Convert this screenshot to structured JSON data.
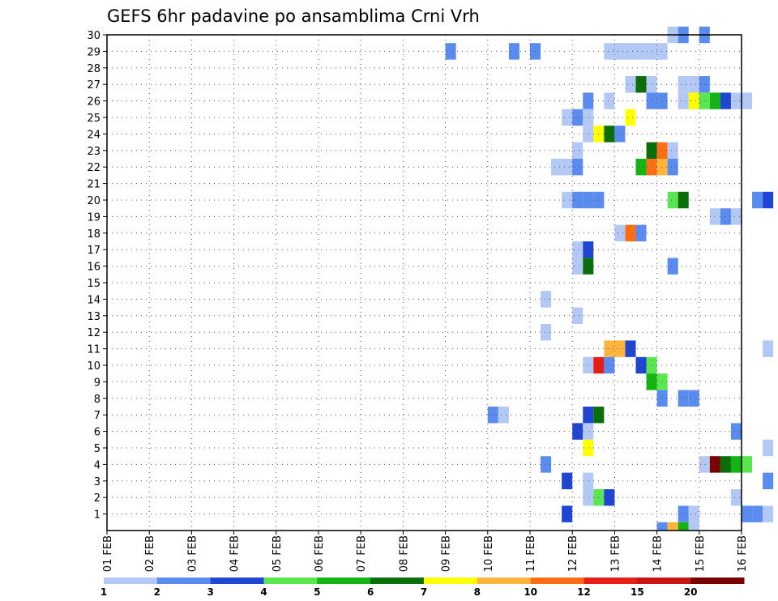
{
  "chart_data": {
    "type": "heatmap",
    "title": "GEFS 6hr padavine po ansamblima Crni Vrh",
    "x_tick_labels": [
      "01 FEB",
      "02 FEB",
      "03 FEB",
      "04 FEB",
      "05 FEB",
      "06 FEB",
      "07 FEB",
      "08 FEB",
      "09 FEB",
      "10 FEB",
      "11 FEB",
      "12 FEB",
      "13 FEB",
      "14 FEB",
      "15 FEB",
      "16 FEB"
    ],
    "y_tick_labels": [
      "1",
      "2",
      "3",
      "4",
      "5",
      "6",
      "7",
      "8",
      "9",
      "10",
      "11",
      "12",
      "13",
      "14",
      "15",
      "16",
      "17",
      "18",
      "19",
      "20",
      "21",
      "22",
      "23",
      "24",
      "25",
      "26",
      "27",
      "28",
      "29",
      "30"
    ],
    "x_range_days": [
      1,
      16
    ],
    "y_range_members": [
      0,
      30
    ],
    "steps_per_day": 4,
    "grid": true,
    "legend_position": "bottom",
    "legend": {
      "colors": [
        "#b4c8f5",
        "#5a8cf0",
        "#1e46d2",
        "#5ae650",
        "#14b414",
        "#0a6e0a",
        "#ffff00",
        "#ffb43c",
        "#ff6e14",
        "#e61e14",
        "#c81414",
        "#780000"
      ],
      "labels": [
        "1",
        "2",
        "3",
        "4",
        "5",
        "6",
        "7",
        "8",
        "10",
        "12",
        "15",
        "20"
      ]
    },
    "cells": [
      {
        "member": 30,
        "day": 14.5,
        "cat": 1
      },
      {
        "member": 30,
        "day": 14.75,
        "cat": 2
      },
      {
        "member": 30,
        "day": 15.25,
        "cat": 2
      },
      {
        "member": 29,
        "day": 9.25,
        "cat": 2
      },
      {
        "member": 29,
        "day": 10.75,
        "cat": 2
      },
      {
        "member": 29,
        "day": 11.25,
        "cat": 2
      },
      {
        "member": 29,
        "day": 13.0,
        "cat": 1
      },
      {
        "member": 29,
        "day": 13.25,
        "cat": 1
      },
      {
        "member": 29,
        "day": 13.5,
        "cat": 1
      },
      {
        "member": 29,
        "day": 13.75,
        "cat": 1
      },
      {
        "member": 29,
        "day": 14.0,
        "cat": 1
      },
      {
        "member": 29,
        "day": 14.25,
        "cat": 1
      },
      {
        "member": 27,
        "day": 13.5,
        "cat": 1
      },
      {
        "member": 27,
        "day": 13.75,
        "cat": 6
      },
      {
        "member": 27,
        "day": 14.0,
        "cat": 1
      },
      {
        "member": 27,
        "day": 14.75,
        "cat": 1
      },
      {
        "member": 27,
        "day": 15.0,
        "cat": 1
      },
      {
        "member": 27,
        "day": 15.25,
        "cat": 2
      },
      {
        "member": 26,
        "day": 12.5,
        "cat": 2
      },
      {
        "member": 26,
        "day": 13.0,
        "cat": 1
      },
      {
        "member": 26,
        "day": 14.0,
        "cat": 2
      },
      {
        "member": 26,
        "day": 14.25,
        "cat": 2
      },
      {
        "member": 26,
        "day": 14.75,
        "cat": 1
      },
      {
        "member": 26,
        "day": 15.0,
        "cat": 7
      },
      {
        "member": 26,
        "day": 15.25,
        "cat": 4
      },
      {
        "member": 26,
        "day": 15.5,
        "cat": 5
      },
      {
        "member": 26,
        "day": 15.75,
        "cat": 3
      },
      {
        "member": 26,
        "day": 16.0,
        "cat": 1
      },
      {
        "member": 26,
        "day": 16.25,
        "cat": 1
      },
      {
        "member": 25,
        "day": 12.0,
        "cat": 1
      },
      {
        "member": 25,
        "day": 12.25,
        "cat": 2
      },
      {
        "member": 25,
        "day": 12.5,
        "cat": 1
      },
      {
        "member": 25,
        "day": 13.5,
        "cat": 7
      },
      {
        "member": 24,
        "day": 12.5,
        "cat": 1
      },
      {
        "member": 24,
        "day": 12.75,
        "cat": 7
      },
      {
        "member": 24,
        "day": 13.0,
        "cat": 6
      },
      {
        "member": 24,
        "day": 13.25,
        "cat": 2
      },
      {
        "member": 23,
        "day": 12.25,
        "cat": 1
      },
      {
        "member": 23,
        "day": 14.0,
        "cat": 6
      },
      {
        "member": 23,
        "day": 14.25,
        "cat": 9
      },
      {
        "member": 23,
        "day": 14.5,
        "cat": 1
      },
      {
        "member": 22,
        "day": 11.75,
        "cat": 1
      },
      {
        "member": 22,
        "day": 12.0,
        "cat": 1
      },
      {
        "member": 22,
        "day": 12.25,
        "cat": 2
      },
      {
        "member": 22,
        "day": 13.75,
        "cat": 5
      },
      {
        "member": 22,
        "day": 14.0,
        "cat": 9
      },
      {
        "member": 22,
        "day": 14.25,
        "cat": 8
      },
      {
        "member": 22,
        "day": 14.5,
        "cat": 2
      },
      {
        "member": 20,
        "day": 12.0,
        "cat": 1
      },
      {
        "member": 20,
        "day": 12.25,
        "cat": 2
      },
      {
        "member": 20,
        "day": 12.5,
        "cat": 2
      },
      {
        "member": 20,
        "day": 12.75,
        "cat": 2
      },
      {
        "member": 20,
        "day": 14.5,
        "cat": 4
      },
      {
        "member": 20,
        "day": 14.75,
        "cat": 6
      },
      {
        "member": 20,
        "day": 16.5,
        "cat": 2
      },
      {
        "member": 20,
        "day": 16.75,
        "cat": 3
      },
      {
        "member": 19,
        "day": 15.5,
        "cat": 1
      },
      {
        "member": 19,
        "day": 15.75,
        "cat": 2
      },
      {
        "member": 19,
        "day": 16.0,
        "cat": 1
      },
      {
        "member": 18,
        "day": 13.25,
        "cat": 1
      },
      {
        "member": 18,
        "day": 13.5,
        "cat": 9
      },
      {
        "member": 18,
        "day": 13.75,
        "cat": 2
      },
      {
        "member": 17,
        "day": 12.25,
        "cat": 1
      },
      {
        "member": 17,
        "day": 12.5,
        "cat": 3
      },
      {
        "member": 16,
        "day": 12.25,
        "cat": 1
      },
      {
        "member": 16,
        "day": 12.5,
        "cat": 6
      },
      {
        "member": 16,
        "day": 14.5,
        "cat": 2
      },
      {
        "member": 14,
        "day": 11.5,
        "cat": 1
      },
      {
        "member": 13,
        "day": 12.25,
        "cat": 1
      },
      {
        "member": 12,
        "day": 11.5,
        "cat": 1
      },
      {
        "member": 11,
        "day": 13.0,
        "cat": 8
      },
      {
        "member": 11,
        "day": 13.25,
        "cat": 8
      },
      {
        "member": 11,
        "day": 13.5,
        "cat": 3
      },
      {
        "member": 11,
        "day": 16.75,
        "cat": 1
      },
      {
        "member": 10,
        "day": 12.5,
        "cat": 1
      },
      {
        "member": 10,
        "day": 12.75,
        "cat": 10
      },
      {
        "member": 10,
        "day": 13.0,
        "cat": 2
      },
      {
        "member": 10,
        "day": 13.75,
        "cat": 3
      },
      {
        "member": 10,
        "day": 14.0,
        "cat": 4
      },
      {
        "member": 9,
        "day": 14.0,
        "cat": 5
      },
      {
        "member": 9,
        "day": 14.25,
        "cat": 4
      },
      {
        "member": 8,
        "day": 14.25,
        "cat": 2
      },
      {
        "member": 8,
        "day": 14.75,
        "cat": 2
      },
      {
        "member": 8,
        "day": 15.0,
        "cat": 2
      },
      {
        "member": 7,
        "day": 10.25,
        "cat": 2
      },
      {
        "member": 7,
        "day": 10.5,
        "cat": 1
      },
      {
        "member": 7,
        "day": 12.5,
        "cat": 3
      },
      {
        "member": 7,
        "day": 12.75,
        "cat": 6
      },
      {
        "member": 6,
        "day": 12.25,
        "cat": 3
      },
      {
        "member": 6,
        "day": 12.5,
        "cat": 1
      },
      {
        "member": 6,
        "day": 16.0,
        "cat": 2
      },
      {
        "member": 5,
        "day": 12.5,
        "cat": 7
      },
      {
        "member": 5,
        "day": 16.75,
        "cat": 1
      },
      {
        "member": 4,
        "day": 11.5,
        "cat": 2
      },
      {
        "member": 4,
        "day": 15.25,
        "cat": 1
      },
      {
        "member": 4,
        "day": 15.5,
        "cat": 12
      },
      {
        "member": 4,
        "day": 15.75,
        "cat": 6
      },
      {
        "member": 4,
        "day": 16.0,
        "cat": 5
      },
      {
        "member": 4,
        "day": 16.25,
        "cat": 4
      },
      {
        "member": 3,
        "day": 12.0,
        "cat": 3
      },
      {
        "member": 3,
        "day": 12.5,
        "cat": 1
      },
      {
        "member": 3,
        "day": 16.75,
        "cat": 2
      },
      {
        "member": 2,
        "day": 12.5,
        "cat": 1
      },
      {
        "member": 2,
        "day": 12.75,
        "cat": 4
      },
      {
        "member": 2,
        "day": 13.0,
        "cat": 3
      },
      {
        "member": 2,
        "day": 16.0,
        "cat": 1
      },
      {
        "member": 1,
        "day": 12.0,
        "cat": 3
      },
      {
        "member": 1,
        "day": 14.75,
        "cat": 2
      },
      {
        "member": 1,
        "day": 15.0,
        "cat": 1
      },
      {
        "member": 1,
        "day": 16.25,
        "cat": 2
      },
      {
        "member": 1,
        "day": 16.5,
        "cat": 2
      },
      {
        "member": 1,
        "day": 16.75,
        "cat": 1
      },
      {
        "member": 0,
        "day": 14.25,
        "cat": 2
      },
      {
        "member": 0,
        "day": 14.5,
        "cat": 8
      },
      {
        "member": 0,
        "day": 14.75,
        "cat": 5
      },
      {
        "member": 0,
        "day": 15.0,
        "cat": 1
      }
    ]
  }
}
